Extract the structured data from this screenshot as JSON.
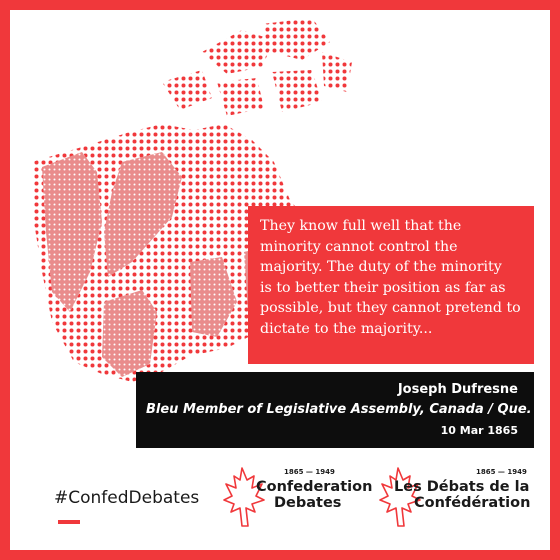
{
  "quote": {
    "lines": [
      "They know full well that the",
      "minority cannot control the",
      "majority. The duty of the minority",
      "is to better their position as far as",
      "possible, but they cannot pretend to",
      "dictate to the majority..."
    ]
  },
  "attribution": {
    "name": "Joseph Dufresne",
    "role": "Bleu Member of Legislative Assembly, Canada / Que.",
    "date": "10 Mar 1865"
  },
  "hashtag": "#ConfedDebates",
  "logos": {
    "english": {
      "years": "1865 — 1949",
      "line1": "Confederation",
      "line2": "Debates"
    },
    "french": {
      "years": "1865 — 1949",
      "line1": "Les Débats de la",
      "line2": "Confédération"
    }
  },
  "colors": {
    "accent": "#f0383b",
    "dark": "#0d0d0d"
  }
}
